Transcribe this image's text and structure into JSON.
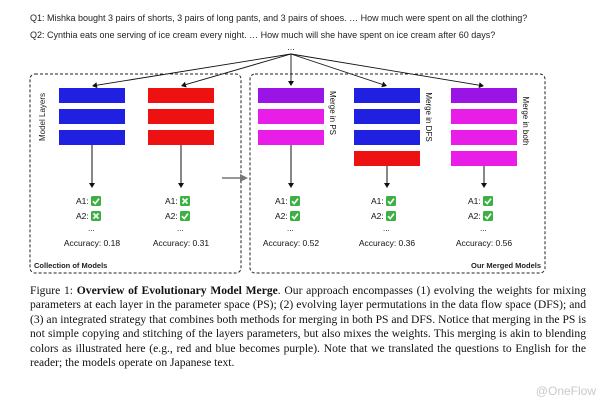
{
  "questions": {
    "q1": "Q1: Mishka bought 3 pairs of shorts, 3 pairs of long pants, and 3 pairs of shoes. … How much were spent on all the clothing?",
    "q2": "Q2: Cynthia eats one serving of ice cream every night. … How much will she have spent on ice cream after 60 days?",
    "ellipsis": "..."
  },
  "left_panel": {
    "title": "Collection of Models",
    "side_label": "Model Layers",
    "models": [
      {
        "color": "#2020e0",
        "layers": [
          "blue",
          "blue",
          "blue"
        ],
        "a1": "A1:",
        "a1_ok": true,
        "a2": "A2:",
        "a2_ok": false,
        "dots": "...",
        "accuracy": "Accuracy: 0.18"
      },
      {
        "color": "#ee1111",
        "layers": [
          "red",
          "red",
          "red"
        ],
        "a1": "A1:",
        "a1_ok": false,
        "a2": "A2:",
        "a2_ok": true,
        "dots": "...",
        "accuracy": "Accuracy: 0.31"
      }
    ]
  },
  "right_panel": {
    "title": "Our Merged Models",
    "models": [
      {
        "label": "Merge in PS",
        "layers": [
          "purple",
          "magenta",
          "magenta"
        ],
        "a1": "A1:",
        "a1_ok": true,
        "a2": "A2:",
        "a2_ok": true,
        "dots": "...",
        "accuracy": "Accuracy: 0.52"
      },
      {
        "label": "Merge in DFS",
        "layers": [
          "blue",
          "blue",
          "blue",
          "red"
        ],
        "a1": "A1:",
        "a1_ok": true,
        "a2": "A2:",
        "a2_ok": true,
        "dots": "...",
        "accuracy": "Accuracy: 0.36"
      },
      {
        "label": "Merge in both",
        "layers": [
          "purple",
          "magenta",
          "magenta",
          "magenta"
        ],
        "a1": "A1:",
        "a1_ok": true,
        "a2": "A2:",
        "a2_ok": true,
        "dots": "...",
        "accuracy": "Accuracy: 0.56"
      }
    ]
  },
  "layer_colors": {
    "blue": "#2020e0",
    "red": "#ee1111",
    "purple": "#9a14e6",
    "magenta": "#e81ee8"
  },
  "check_color": "#3cb043",
  "cross_color": "#3cb043",
  "caption": {
    "prefix": "Figure 1:",
    "title": "Overview of Evolutionary Model Merge",
    "body": ". Our approach encompasses (1) evolving the weights for mixing parameters at each layer in the parameter space (PS); (2) evolving layer permutations in the data flow space (DFS); and (3) an integrated strategy that combines both methods for merging in both PS and DFS. Notice that merging in the PS is not simple copying and stitching of the layers parameters, but also mixes the weights. This merging is akin to blending colors as illustrated here (e.g., red and blue becomes purple). Note that we translated the questions to English for the reader; the models operate on Japanese text."
  },
  "watermark": "@OneFlow"
}
